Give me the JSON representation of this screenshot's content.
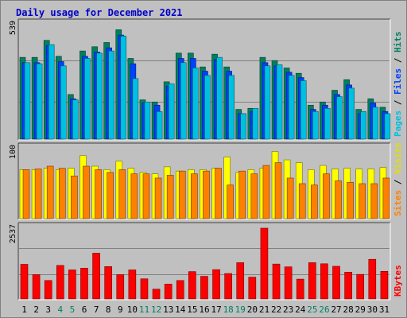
{
  "chart_data": {
    "title": "Daily usage for December 2021",
    "type": "bar",
    "categories": [
      "1",
      "2",
      "3",
      "4",
      "5",
      "6",
      "7",
      "8",
      "9",
      "10",
      "11",
      "12",
      "13",
      "14",
      "15",
      "16",
      "17",
      "18",
      "19",
      "20",
      "21",
      "22",
      "23",
      "24",
      "25",
      "26",
      "27",
      "28",
      "29",
      "30",
      "31"
    ],
    "weekend_days": [
      "4",
      "5",
      "11",
      "12",
      "18",
      "19",
      "25",
      "26"
    ],
    "panels": [
      {
        "id": "pages-files-hits",
        "ymax": 539,
        "ymax_label": "539",
        "axis_label_parts": [
          {
            "text": "Pages",
            "color": "#00c0e0"
          },
          {
            "text": " / ",
            "color": "#000000"
          },
          {
            "text": "Files",
            "color": "#0040ff"
          },
          {
            "text": " / ",
            "color": "#000000"
          },
          {
            "text": "Hits",
            "color": "#008060"
          }
        ],
        "series": [
          {
            "name": "Hits",
            "color": "#008060",
            "values": [
              385,
              385,
              465,
              390,
              210,
              415,
              435,
              455,
              515,
              380,
              185,
              175,
              270,
              405,
              405,
              340,
              400,
              340,
              140,
              145,
              385,
              370,
              335,
              310,
              160,
              175,
              230,
              280,
              140,
              190,
              150
            ]
          },
          {
            "name": "Files",
            "color": "#0040ff",
            "values": [
              360,
              360,
              440,
              365,
              190,
              390,
              410,
              430,
              490,
              355,
              170,
              160,
              250,
              380,
              380,
              320,
              375,
              320,
              120,
              130,
              360,
              345,
              315,
              290,
              140,
              160,
              210,
              255,
              120,
              170,
              130
            ]
          },
          {
            "name": "Pages",
            "color": "#00c0e0",
            "values": [
              360,
              355,
              445,
              345,
              185,
              380,
              405,
              415,
              485,
              285,
              175,
              130,
              260,
              360,
              335,
              300,
              385,
              300,
              120,
              145,
              345,
              350,
              300,
              275,
              130,
              145,
              200,
              240,
              130,
              150,
              120
            ]
          }
        ]
      },
      {
        "id": "sites-visits",
        "ymax": 100,
        "ymax_label": "100",
        "axis_label_parts": [
          {
            "text": "Sites",
            "color": "#ff8000"
          },
          {
            "text": " / ",
            "color": "#000000"
          },
          {
            "text": "Visits",
            "color": "#e0e000"
          }
        ],
        "series": [
          {
            "name": "Visits",
            "color": "#ffff00",
            "values": [
              70,
              70,
              72,
              70,
              72,
              90,
              75,
              70,
              82,
              72,
              66,
              64,
              74,
              68,
              70,
              70,
              72,
              88,
              66,
              70,
              72,
              96,
              84,
              80,
              70,
              76,
              71,
              72,
              71,
              71,
              73
            ]
          },
          {
            "name": "Sites",
            "color": "#ff8000",
            "values": [
              70,
              71,
              75,
              72,
              61,
              75,
              70,
              66,
              70,
              64,
              64,
              58,
              62,
              68,
              64,
              68,
              72,
              48,
              68,
              64,
              76,
              80,
              58,
              50,
              48,
              64,
              54,
              52,
              50,
              50,
              58
            ]
          }
        ]
      },
      {
        "id": "kbytes",
        "ymax": 2537,
        "ymax_label": "2537",
        "axis_label_parts": [
          {
            "text": "KBytes",
            "color": "#ff0000"
          }
        ],
        "series": [
          {
            "name": "KBytes",
            "color": "#ff0000",
            "values": [
              1240,
              870,
              660,
              1200,
              1040,
              1100,
              1640,
              1160,
              870,
              1040,
              720,
              350,
              530,
              660,
              980,
              810,
              1050,
              910,
              1300,
              780,
              2537,
              1250,
              1150,
              710,
              1300,
              1260,
              1170,
              960,
              880,
              1420,
              990
            ]
          }
        ]
      }
    ]
  }
}
